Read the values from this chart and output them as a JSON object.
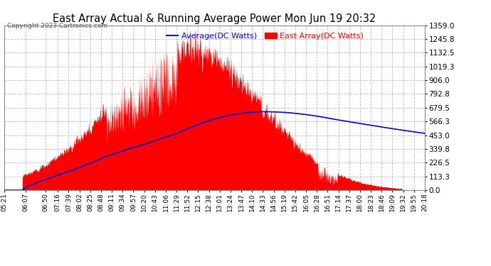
{
  "title": "East Array Actual & Running Average Power Mon Jun 19 20:32",
  "copyright": "Copyright 2023 Cartronics.com",
  "legend_avg": "Average(DC Watts)",
  "legend_east": "East Array(DC Watts)",
  "ylabel_right_ticks": [
    0.0,
    113.3,
    226.5,
    339.8,
    453.0,
    566.3,
    679.5,
    792.8,
    906.0,
    1019.3,
    1132.5,
    1245.8,
    1359.0
  ],
  "ymax": 1359.0,
  "ymin": 0.0,
  "background_color": "#ffffff",
  "plot_bg_color": "#ffffff",
  "grid_color": "#bbbbbb",
  "east_color": "#ff0000",
  "avg_color": "#0000cc",
  "title_color": "#000000",
  "legend_avg_color": "#0000ff",
  "legend_east_color": "#ff0000",
  "x_tick_labels": [
    "05:21",
    "06:07",
    "06:50",
    "07:16",
    "07:39",
    "08:02",
    "08:25",
    "08:48",
    "09:11",
    "09:34",
    "09:57",
    "10:20",
    "10:43",
    "11:06",
    "11:29",
    "11:52",
    "12:15",
    "12:38",
    "13:01",
    "13:24",
    "13:47",
    "14:10",
    "14:33",
    "14:56",
    "15:19",
    "15:42",
    "16:05",
    "16:28",
    "16:51",
    "17:14",
    "17:37",
    "18:00",
    "18:23",
    "18:46",
    "19:09",
    "19:32",
    "19:55",
    "20:18"
  ]
}
